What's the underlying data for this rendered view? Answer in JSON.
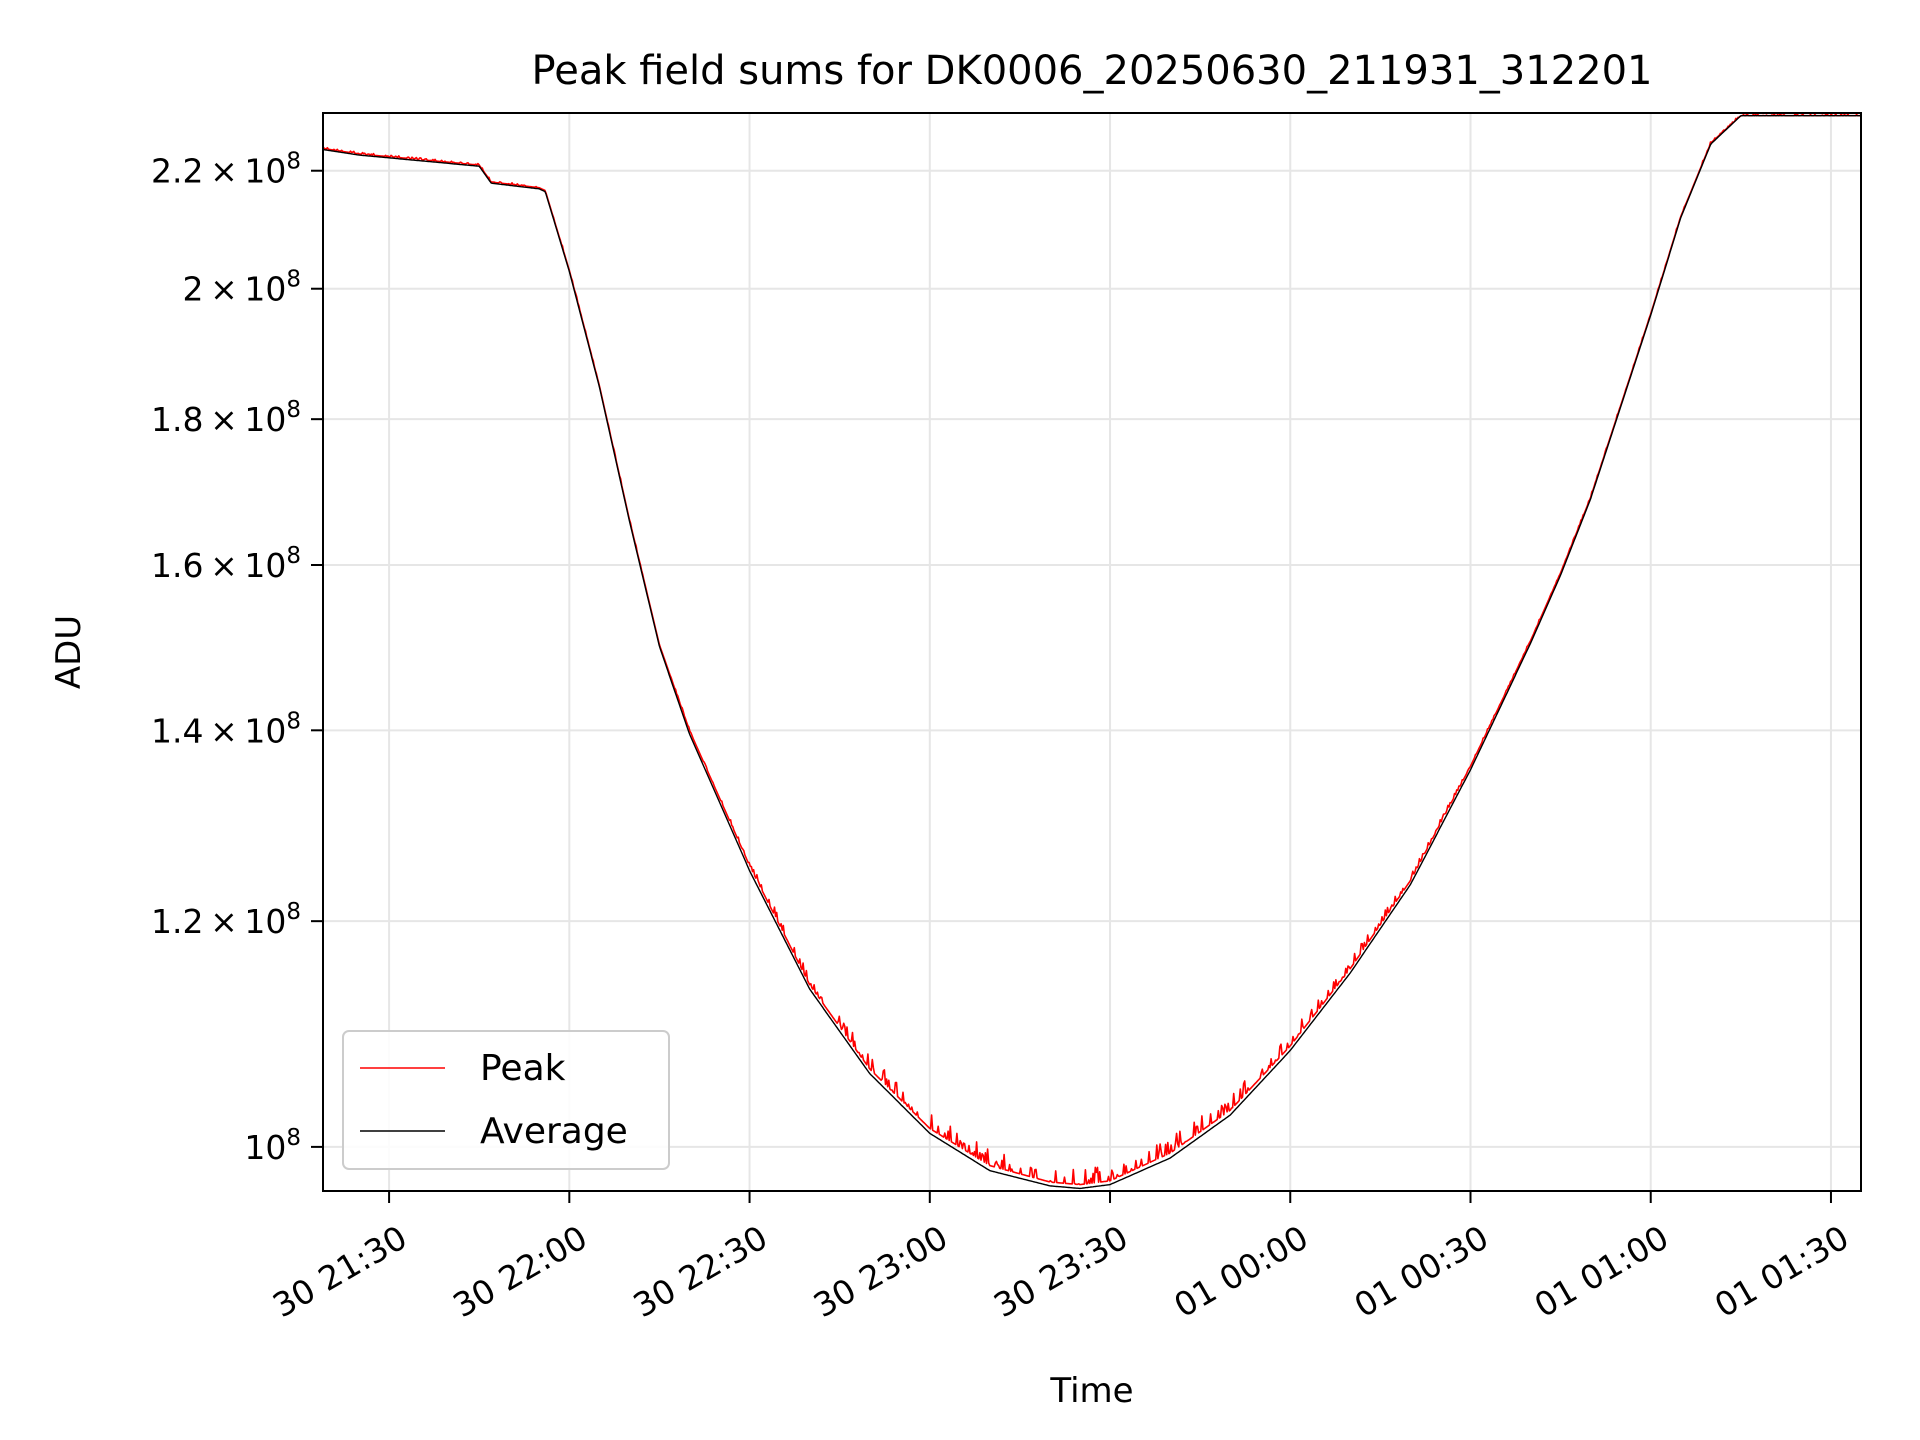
{
  "chart_data": {
    "type": "line",
    "title": "Peak field sums for DK0006_20250630_211931_312201",
    "xlabel": "Time",
    "ylabel": "ADU",
    "y_scale": "log",
    "grid": true,
    "legend_position": "lower-left",
    "xlim": [
      "2025-06-30 21:19",
      "2025-07-01 01:35"
    ],
    "ylim": [
      96500000,
      230500000
    ],
    "x_ticks": [
      {
        "value": "2025-06-30 21:30",
        "label": "30 21:30"
      },
      {
        "value": "2025-06-30 22:00",
        "label": "30 22:00"
      },
      {
        "value": "2025-06-30 22:30",
        "label": "30 22:30"
      },
      {
        "value": "2025-06-30 23:00",
        "label": "30 23:00"
      },
      {
        "value": "2025-06-30 23:30",
        "label": "30 23:30"
      },
      {
        "value": "2025-07-01 00:00",
        "label": "01 00:00"
      },
      {
        "value": "2025-07-01 00:30",
        "label": "01 00:30"
      },
      {
        "value": "2025-07-01 01:00",
        "label": "01 01:00"
      },
      {
        "value": "2025-07-01 01:30",
        "label": "01 01:30"
      }
    ],
    "y_ticks": [
      {
        "value": 100000000,
        "mantissa": "",
        "exponent": "8",
        "label": "10^8"
      },
      {
        "value": 120000000,
        "mantissa": "1.2",
        "exponent": "8",
        "label": "1.2×10^8"
      },
      {
        "value": 140000000,
        "mantissa": "1.4",
        "exponent": "8",
        "label": "1.4×10^8"
      },
      {
        "value": 160000000,
        "mantissa": "1.6",
        "exponent": "8",
        "label": "1.6×10^8"
      },
      {
        "value": 180000000,
        "mantissa": "1.8",
        "exponent": "8",
        "label": "1.8×10^8"
      },
      {
        "value": 200000000,
        "mantissa": "2",
        "exponent": "8",
        "label": "2×10^8"
      },
      {
        "value": 220000000,
        "mantissa": "2.2",
        "exponent": "8",
        "label": "2.2×10^8"
      }
    ],
    "series": [
      {
        "name": "Peak",
        "color": "#ff0000",
        "x": [
          "2025-06-30 21:19",
          "2025-06-30 21:25",
          "2025-06-30 21:35",
          "2025-06-30 21:45",
          "2025-06-30 21:47",
          "2025-06-30 21:55",
          "2025-06-30 21:56",
          "2025-06-30 22:00",
          "2025-06-30 22:05",
          "2025-06-30 22:10",
          "2025-06-30 22:15",
          "2025-06-30 22:20",
          "2025-06-30 22:30",
          "2025-06-30 22:40",
          "2025-06-30 22:50",
          "2025-06-30 23:00",
          "2025-06-30 23:10",
          "2025-06-30 23:20",
          "2025-06-30 23:25",
          "2025-06-30 23:30",
          "2025-06-30 23:40",
          "2025-06-30 23:50",
          "2025-07-01 00:00",
          "2025-07-01 00:10",
          "2025-07-01 00:20",
          "2025-07-01 00:30",
          "2025-07-01 00:40",
          "2025-07-01 00:45",
          "2025-07-01 00:50",
          "2025-07-01 00:55",
          "2025-07-01 01:00",
          "2025-07-01 01:05",
          "2025-07-01 01:10",
          "2025-07-01 01:15",
          "2025-07-01 01:35"
        ],
        "values": [
          224000000,
          223000000,
          222000000,
          221000000,
          218000000,
          217000000,
          216500000,
          203000000,
          185000000,
          166000000,
          150000000,
          140000000,
          125500000,
          114000000,
          106500000,
          101500000,
          98500000,
          97200000,
          97000000,
          97300000,
          99500000,
          103000000,
          108500000,
          115500000,
          124000000,
          136000000,
          150500000,
          159000000,
          169000000,
          182000000,
          196000000,
          212000000,
          225000000,
          230000000,
          230000000
        ],
        "noise": true
      },
      {
        "name": "Average",
        "color": "#000000",
        "x": [
          "2025-06-30 21:19",
          "2025-06-30 21:25",
          "2025-06-30 21:35",
          "2025-06-30 21:45",
          "2025-06-30 21:47",
          "2025-06-30 21:55",
          "2025-06-30 21:56",
          "2025-06-30 22:00",
          "2025-06-30 22:05",
          "2025-06-30 22:10",
          "2025-06-30 22:15",
          "2025-06-30 22:20",
          "2025-06-30 22:30",
          "2025-06-30 22:40",
          "2025-06-30 22:50",
          "2025-06-30 23:00",
          "2025-06-30 23:10",
          "2025-06-30 23:20",
          "2025-06-30 23:25",
          "2025-06-30 23:30",
          "2025-06-30 23:40",
          "2025-06-30 23:50",
          "2025-07-01 00:00",
          "2025-07-01 00:10",
          "2025-07-01 00:20",
          "2025-07-01 00:30",
          "2025-07-01 00:40",
          "2025-07-01 00:45",
          "2025-07-01 00:50",
          "2025-07-01 00:55",
          "2025-07-01 01:00",
          "2025-07-01 01:05",
          "2025-07-01 01:10",
          "2025-07-01 01:15",
          "2025-07-01 01:35"
        ],
        "values": [
          223800000,
          222800000,
          221800000,
          220800000,
          217800000,
          216800000,
          216300000,
          202800000,
          184800000,
          165800000,
          149800000,
          139600000,
          125000000,
          113600000,
          106100000,
          101100000,
          98100000,
          96900000,
          96700000,
          97000000,
          99100000,
          102600000,
          108100000,
          115100000,
          123600000,
          135600000,
          150200000,
          158700000,
          168800000,
          181800000,
          195800000,
          211800000,
          224800000,
          230000000,
          230000000
        ],
        "noise": false
      }
    ]
  }
}
